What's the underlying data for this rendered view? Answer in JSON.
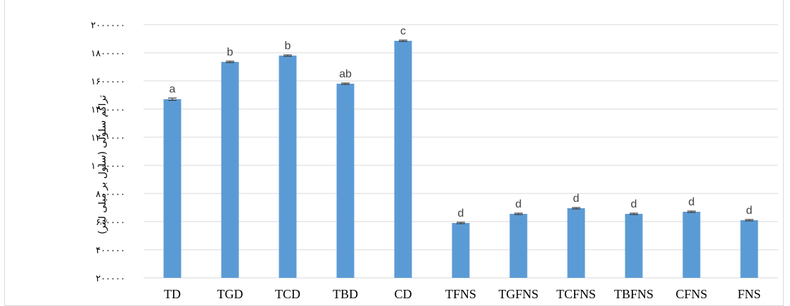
{
  "chart_data": {
    "type": "bar",
    "title": "",
    "xlabel": "",
    "ylabel": "تراکم سلولی (سلول بر میلی لیتر)",
    "ylim": [
      200000,
      2000000
    ],
    "grid": true,
    "colors": {
      "bar": "#5b9bd5",
      "grid": "#d9d9d9",
      "error": "#404040"
    },
    "yticks": [
      200000,
      400000,
      600000,
      800000,
      1000000,
      1200000,
      1400000,
      1600000,
      1800000,
      2000000
    ],
    "ytick_labels": [
      "۲۰۰۰۰۰",
      "۴۰۰۰۰۰",
      "۶۰۰۰۰۰",
      "۸۰۰۰۰۰",
      "۱۰۰۰۰۰۰",
      "۱۲۰۰۰۰۰",
      "۱۴۰۰۰۰۰",
      "۱۶۰۰۰۰۰",
      "۱۸۰۰۰۰۰",
      "۲۰۰۰۰۰۰"
    ],
    "categories": [
      "TD",
      "TGD",
      "TCD",
      "TBD",
      "CD",
      "TFNS",
      "TGFNS",
      "TCFNS",
      "TBFNS",
      "CFNS",
      "FNS"
    ],
    "values": [
      1470000,
      1735000,
      1780000,
      1580000,
      1885000,
      590000,
      655000,
      695000,
      655000,
      670000,
      610000
    ],
    "errors": [
      8000,
      5000,
      5000,
      5000,
      5000,
      5000,
      5000,
      5000,
      5000,
      5000,
      5000
    ],
    "labels": [
      "a",
      "b",
      "b",
      "ab",
      "c",
      "d",
      "d",
      "d",
      "d",
      "d",
      "d"
    ]
  }
}
